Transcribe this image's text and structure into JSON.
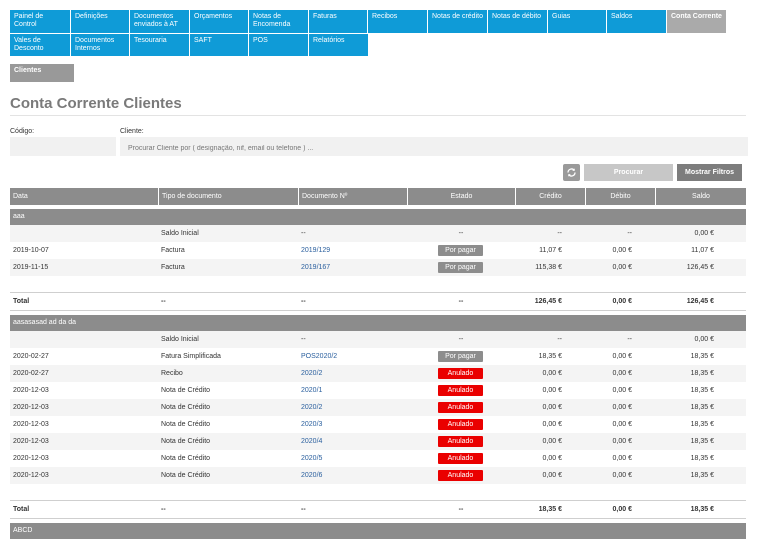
{
  "nav": {
    "tiles": [
      "Painel de Control",
      "Definições",
      "Documentos enviados à AT",
      "Orçamentos",
      "Notas de Encomenda",
      "Faturas",
      "Recibos",
      "Notas de crédito",
      "Notas de débito",
      "Guias",
      "Saldos",
      "Conta Corrente",
      "Vales de Desconto",
      "Documentos Internos",
      "Tesouraria",
      "SAFT",
      "POS",
      "Relatórios"
    ],
    "sub_tab": "Clientes"
  },
  "page": {
    "title": "Conta Corrente Clientes"
  },
  "filters": {
    "code_label": "Código:",
    "code_value": "",
    "client_label": "Cliente:",
    "client_placeholder": "Procurar Cliente por ( designação, nif, email ou telefone ) ...",
    "refresh_icon": "refresh-icon",
    "search_label": "Procurar",
    "filters_label": "Mostrar Filtros"
  },
  "colors": {
    "accent": "#0f9bd7",
    "header_grey": "#8c8c8c",
    "pending": "#8d8d8d",
    "cancelled": "#ea0000"
  },
  "table": {
    "headers": [
      "Data",
      "Tipo de documento",
      "Documento Nº",
      "Estado",
      "Crédito",
      "Débito",
      "Saldo"
    ],
    "groups": [
      {
        "name": "aaa",
        "rows": [
          {
            "date": "",
            "type": "Saldo Inicial",
            "doc": "--",
            "status": "--",
            "credit": "--",
            "debit": "--",
            "balance": "0,00 €"
          },
          {
            "date": "2019-10-07",
            "type": "Factura",
            "doc": "2019/129",
            "status": "Por pagar",
            "credit": "11,07 €",
            "debit": "0,00 €",
            "balance": "11,07 €"
          },
          {
            "date": "2019-11-15",
            "type": "Factura",
            "doc": "2019/167",
            "status": "Por pagar",
            "credit": "115,38 €",
            "debit": "0,00 €",
            "balance": "126,45 €"
          }
        ],
        "total": {
          "label": "Total",
          "type": "--",
          "doc": "--",
          "status": "--",
          "credit": "126,45 €",
          "debit": "0,00 €",
          "balance": "126,45 €"
        }
      },
      {
        "name": "aasasasad ad da da",
        "rows": [
          {
            "date": "",
            "type": "Saldo Inicial",
            "doc": "--",
            "status": "--",
            "credit": "--",
            "debit": "--",
            "balance": "0,00 €"
          },
          {
            "date": "2020-02-27",
            "type": "Fatura Simplificada",
            "doc": "POS2020/2",
            "status": "Por pagar",
            "credit": "18,35 €",
            "debit": "0,00 €",
            "balance": "18,35 €"
          },
          {
            "date": "2020-02-27",
            "type": "Recibo",
            "doc": "2020/2",
            "status": "Anulado",
            "credit": "0,00 €",
            "debit": "0,00 €",
            "balance": "18,35 €"
          },
          {
            "date": "2020-12-03",
            "type": "Nota de Crédito",
            "doc": "2020/1",
            "status": "Anulado",
            "credit": "0,00 €",
            "debit": "0,00 €",
            "balance": "18,35 €"
          },
          {
            "date": "2020-12-03",
            "type": "Nota de Crédito",
            "doc": "2020/2",
            "status": "Anulado",
            "credit": "0,00 €",
            "debit": "0,00 €",
            "balance": "18,35 €"
          },
          {
            "date": "2020-12-03",
            "type": "Nota de Crédito",
            "doc": "2020/3",
            "status": "Anulado",
            "credit": "0,00 €",
            "debit": "0,00 €",
            "balance": "18,35 €"
          },
          {
            "date": "2020-12-03",
            "type": "Nota de Crédito",
            "doc": "2020/4",
            "status": "Anulado",
            "credit": "0,00 €",
            "debit": "0,00 €",
            "balance": "18,35 €"
          },
          {
            "date": "2020-12-03",
            "type": "Nota de Crédito",
            "doc": "2020/5",
            "status": "Anulado",
            "credit": "0,00 €",
            "debit": "0,00 €",
            "balance": "18,35 €"
          },
          {
            "date": "2020-12-03",
            "type": "Nota de Crédito",
            "doc": "2020/6",
            "status": "Anulado",
            "credit": "0,00 €",
            "debit": "0,00 €",
            "balance": "18,35 €"
          }
        ],
        "total": {
          "label": "Total",
          "type": "--",
          "doc": "--",
          "status": "--",
          "credit": "18,35 €",
          "debit": "0,00 €",
          "balance": "18,35 €"
        }
      },
      {
        "name": "ABCD",
        "rows": [],
        "total": null
      }
    ]
  }
}
